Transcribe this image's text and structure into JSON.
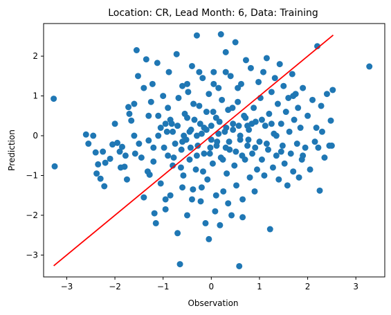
{
  "chart_data": {
    "type": "scatter",
    "title": "Location: CR, Lead Month: 6, Data: Training",
    "xlabel": "Observation",
    "ylabel": "Prediction",
    "xlim": [
      -3.48,
      3.6
    ],
    "ylim": [
      -3.55,
      2.82
    ],
    "xticks": [
      -3,
      -2,
      -1,
      0,
      1,
      2,
      3
    ],
    "yticks": [
      -3,
      -2,
      -1,
      0,
      1,
      2
    ],
    "grid": false,
    "colors": {
      "points": "#1f77b4",
      "fit_line": "#ff0000"
    },
    "fit_line": {
      "x": [
        -3.27,
        2.53
      ],
      "y": [
        -3.27,
        2.53
      ]
    },
    "series": [
      {
        "points": [
          [
            -3.27,
            0.93
          ],
          [
            -3.25,
            -0.77
          ],
          [
            3.28,
            1.74
          ],
          [
            -2.6,
            0.03
          ],
          [
            -2.55,
            -0.2
          ],
          [
            -2.45,
            0.0
          ],
          [
            -2.4,
            -0.42
          ],
          [
            -2.38,
            -0.95
          ],
          [
            -2.35,
            -0.72
          ],
          [
            -2.3,
            -1.08
          ],
          [
            -2.25,
            -0.4
          ],
          [
            -2.22,
            -1.27
          ],
          [
            -2.2,
            -0.68
          ],
          [
            -2.1,
            -0.58
          ],
          [
            -2.05,
            -0.22
          ],
          [
            -1.95,
            -0.18
          ],
          [
            -1.9,
            -0.4
          ],
          [
            -1.88,
            -0.8
          ],
          [
            -1.85,
            -0.28
          ],
          [
            -1.8,
            -0.78
          ],
          [
            -1.78,
            -0.5
          ],
          [
            -1.72,
            0.72
          ],
          [
            -1.7,
            0.55
          ],
          [
            -1.66,
            0.38
          ],
          [
            -1.6,
            0.0
          ],
          [
            -1.58,
            -0.45
          ],
          [
            -1.55,
            2.15
          ],
          [
            -1.52,
            1.5
          ],
          [
            -1.5,
            -0.2
          ],
          [
            -1.45,
            -0.55
          ],
          [
            -1.4,
            -1.55
          ],
          [
            -1.35,
            1.92
          ],
          [
            -1.32,
            -0.9
          ],
          [
            -1.3,
            -0.12
          ],
          [
            -1.28,
            -0.98
          ],
          [
            -1.25,
            0.85
          ],
          [
            -1.22,
            1.3
          ],
          [
            -1.2,
            -0.65
          ],
          [
            -1.18,
            -1.95
          ],
          [
            -1.15,
            -2.2
          ],
          [
            -1.12,
            1.83
          ],
          [
            -1.1,
            0.5
          ],
          [
            -1.05,
            -1.2
          ],
          [
            -1.0,
            1.0
          ],
          [
            -0.95,
            -1.85
          ],
          [
            -0.92,
            0.1
          ],
          [
            -0.9,
            -0.5
          ],
          [
            -0.88,
            1.6
          ],
          [
            -0.85,
            -1.5
          ],
          [
            -0.82,
            0.3
          ],
          [
            -0.8,
            -0.75
          ],
          [
            -0.75,
            -0.2
          ],
          [
            -0.72,
            2.05
          ],
          [
            -0.7,
            -2.45
          ],
          [
            -0.68,
            0.95
          ],
          [
            -0.65,
            -3.23
          ],
          [
            -0.62,
            -0.35
          ],
          [
            -0.6,
            1.25
          ],
          [
            -0.58,
            -1.0
          ],
          [
            -0.55,
            0.55
          ],
          [
            -0.52,
            -0.1
          ],
          [
            -0.5,
            -2.0
          ],
          [
            -0.48,
            1.1
          ],
          [
            -0.45,
            -0.6
          ],
          [
            -0.42,
            0.15
          ],
          [
            -0.4,
            1.75
          ],
          [
            -0.38,
            -1.35
          ],
          [
            -0.35,
            0.4
          ],
          [
            -0.32,
            -0.85
          ],
          [
            -0.3,
            2.52
          ],
          [
            -0.28,
            -0.25
          ],
          [
            -0.25,
            0.75
          ],
          [
            -0.22,
            -1.65
          ],
          [
            -0.2,
            0.05
          ],
          [
            -0.18,
            1.45
          ],
          [
            -0.15,
            -0.45
          ],
          [
            -0.12,
            -2.2
          ],
          [
            -0.1,
            0.6
          ],
          [
            -0.08,
            -1.1
          ],
          [
            -0.05,
            1.05
          ],
          [
            -0.02,
            -0.3
          ],
          [
            0.0,
            0.25
          ],
          [
            0.03,
            -0.7
          ],
          [
            0.05,
            1.6
          ],
          [
            0.08,
            -1.9
          ],
          [
            0.1,
            0.45
          ],
          [
            0.12,
            -0.15
          ],
          [
            0.15,
            1.2
          ],
          [
            0.18,
            -2.25
          ],
          [
            0.2,
            -0.55
          ],
          [
            0.22,
            0.9
          ],
          [
            0.25,
            -1.4
          ],
          [
            0.28,
            0.1
          ],
          [
            0.3,
            2.1
          ],
          [
            0.32,
            -0.95
          ],
          [
            0.35,
            0.65
          ],
          [
            0.38,
            -0.35
          ],
          [
            0.4,
            1.5
          ],
          [
            0.42,
            -2.0
          ],
          [
            0.45,
            0.3
          ],
          [
            0.48,
            -0.75
          ],
          [
            0.5,
            2.35
          ],
          [
            0.52,
            -1.25
          ],
          [
            0.55,
            0.85
          ],
          [
            0.58,
            -3.28
          ],
          [
            0.6,
            -0.1
          ],
          [
            0.62,
            1.3
          ],
          [
            0.65,
            -1.6
          ],
          [
            0.68,
            0.5
          ],
          [
            0.7,
            -0.6
          ],
          [
            0.72,
            1.9
          ],
          [
            0.75,
            -0.25
          ],
          [
            0.78,
            0.15
          ],
          [
            0.8,
            -1.05
          ],
          [
            0.82,
            1.7
          ],
          [
            0.85,
            -0.45
          ],
          [
            0.88,
            0.7
          ],
          [
            0.9,
            -1.4
          ],
          [
            0.92,
            0.35
          ],
          [
            0.95,
            -0.85
          ],
          [
            0.98,
            1.35
          ],
          [
            1.0,
            -0.15
          ],
          [
            1.02,
            0.95
          ],
          [
            1.05,
            -0.6
          ],
          [
            1.08,
            1.6
          ],
          [
            1.1,
            -1.0
          ],
          [
            1.12,
            0.25
          ],
          [
            1.15,
            1.95
          ],
          [
            1.18,
            -0.35
          ],
          [
            1.2,
            0.55
          ],
          [
            1.22,
            -2.35
          ],
          [
            1.25,
            1.1
          ],
          [
            1.28,
            -0.8
          ],
          [
            1.3,
            0.05
          ],
          [
            1.32,
            1.45
          ],
          [
            1.35,
            -0.5
          ],
          [
            1.38,
            0.8
          ],
          [
            1.4,
            -1.1
          ],
          [
            1.42,
            1.8
          ],
          [
            1.45,
            0.3
          ],
          [
            1.48,
            -0.25
          ],
          [
            1.5,
            1.25
          ],
          [
            1.52,
            -0.7
          ],
          [
            1.55,
            0.6
          ],
          [
            1.58,
            -1.25
          ],
          [
            1.6,
            0.95
          ],
          [
            1.62,
            0.1
          ],
          [
            1.65,
            -0.45
          ],
          [
            1.68,
            1.55
          ],
          [
            1.7,
            -0.9
          ],
          [
            1.72,
            0.4
          ],
          [
            1.75,
            1.05
          ],
          [
            1.78,
            -0.2
          ],
          [
            1.8,
            0.7
          ],
          [
            1.82,
            -1.05
          ],
          [
            1.85,
            0.2
          ],
          [
            1.88,
            -0.6
          ],
          [
            1.9,
            1.2
          ],
          [
            1.95,
            -0.3
          ],
          [
            2.0,
            0.5
          ],
          [
            2.05,
            -0.85
          ],
          [
            2.1,
            0.9
          ],
          [
            2.15,
            -0.15
          ],
          [
            2.18,
            0.2
          ],
          [
            2.2,
            2.25
          ],
          [
            2.22,
            -0.3
          ],
          [
            2.25,
            -1.38
          ],
          [
            2.28,
            0.75
          ],
          [
            2.3,
            0.1
          ],
          [
            2.35,
            -0.55
          ],
          [
            2.4,
            1.05
          ],
          [
            2.45,
            -0.25
          ],
          [
            2.48,
            0.38
          ],
          [
            2.5,
            -0.25
          ],
          [
            2.52,
            1.15
          ],
          [
            -1.05,
            0.2
          ],
          [
            -0.98,
            -0.3
          ],
          [
            -0.9,
            0.7
          ],
          [
            -0.85,
            0.4
          ],
          [
            -0.78,
            -0.55
          ],
          [
            -0.7,
            0.25
          ],
          [
            -0.63,
            -0.8
          ],
          [
            -0.57,
            0.0
          ],
          [
            -0.5,
            0.45
          ],
          [
            -0.43,
            -0.3
          ],
          [
            -0.37,
            0.8
          ],
          [
            -0.3,
            -0.5
          ],
          [
            -0.23,
            0.3
          ],
          [
            -0.17,
            -0.9
          ],
          [
            -0.1,
            0.15
          ],
          [
            -0.03,
            -0.45
          ],
          [
            0.04,
            0.6
          ],
          [
            0.11,
            -0.25
          ],
          [
            0.17,
            0.35
          ],
          [
            0.24,
            -0.6
          ],
          [
            0.31,
            0.2
          ],
          [
            0.37,
            -0.15
          ],
          [
            0.44,
            0.7
          ],
          [
            0.51,
            -0.4
          ],
          [
            0.57,
            0.25
          ],
          [
            0.64,
            -0.5
          ],
          [
            0.71,
            0.45
          ],
          [
            0.77,
            -0.1
          ],
          [
            0.84,
            0.3
          ],
          [
            0.91,
            -0.3
          ],
          [
            -0.6,
            -0.15
          ],
          [
            -0.45,
            0.1
          ],
          [
            -0.3,
            0.0
          ],
          [
            -0.15,
            0.2
          ],
          [
            0.0,
            -0.1
          ],
          [
            0.15,
            0.05
          ],
          [
            0.3,
            -0.3
          ],
          [
            0.45,
            0.15
          ],
          [
            0.6,
            0.0
          ],
          [
            0.75,
            0.25
          ],
          [
            -1.3,
            0.5
          ],
          [
            -1.2,
            -0.3
          ],
          [
            -1.1,
            0.0
          ],
          [
            -0.95,
            0.3
          ],
          [
            -0.8,
            0.1
          ],
          [
            1.05,
            0.4
          ],
          [
            1.15,
            -0.2
          ],
          [
            1.25,
            0.3
          ],
          [
            1.35,
            0.0
          ],
          [
            1.45,
            -0.4
          ],
          [
            -0.6,
            -1.3
          ],
          [
            -0.4,
            -1.6
          ],
          [
            -0.2,
            -1.3
          ],
          [
            0.1,
            -1.5
          ],
          [
            0.35,
            -1.7
          ],
          [
            -0.5,
            1.3
          ],
          [
            -0.25,
            1.6
          ],
          [
            0.05,
            1.3
          ],
          [
            0.3,
            1.6
          ],
          [
            0.55,
            1.2
          ],
          [
            -2.0,
            0.3
          ],
          [
            -1.75,
            -1.1
          ],
          [
            -1.6,
            0.8
          ],
          [
            1.7,
            1.0
          ],
          [
            1.9,
            -0.5
          ],
          [
            -0.05,
            -2.6
          ],
          [
            0.2,
            2.55
          ],
          [
            -0.95,
            -1.6
          ],
          [
            0.65,
            -2.05
          ],
          [
            -1.4,
            1.2
          ]
        ]
      }
    ]
  }
}
